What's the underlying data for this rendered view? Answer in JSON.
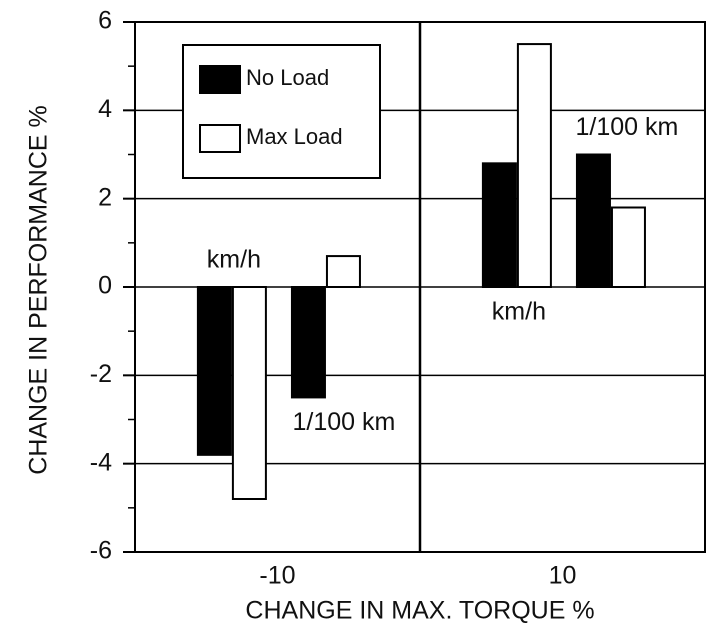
{
  "chart_data": {
    "type": "grouped_bar",
    "xlabel": "CHANGE IN MAX. TORQUE %",
    "ylabel": "CHANGE IN PERFORMANCE %",
    "categories": [
      "-10",
      "10"
    ],
    "subcategories": [
      [
        "km/h",
        "1/100 km"
      ],
      [
        "km/h",
        "1/100 km"
      ]
    ],
    "series": [
      {
        "name": "No Load",
        "color": "#000000",
        "values": [
          [
            -3.8,
            -2.5
          ],
          [
            2.8,
            3.0
          ]
        ]
      },
      {
        "name": "Max Load",
        "color": "#ffffff",
        "values": [
          [
            -4.8,
            0.7
          ],
          [
            5.5,
            1.8
          ]
        ]
      }
    ],
    "ylim": [
      -6,
      6
    ],
    "yticks": [
      -6,
      -4,
      -2,
      0,
      2,
      4,
      6
    ],
    "yminorticks": [
      -5,
      -3,
      -1,
      1,
      3,
      5
    ],
    "grid": true,
    "legend": "upper left"
  }
}
